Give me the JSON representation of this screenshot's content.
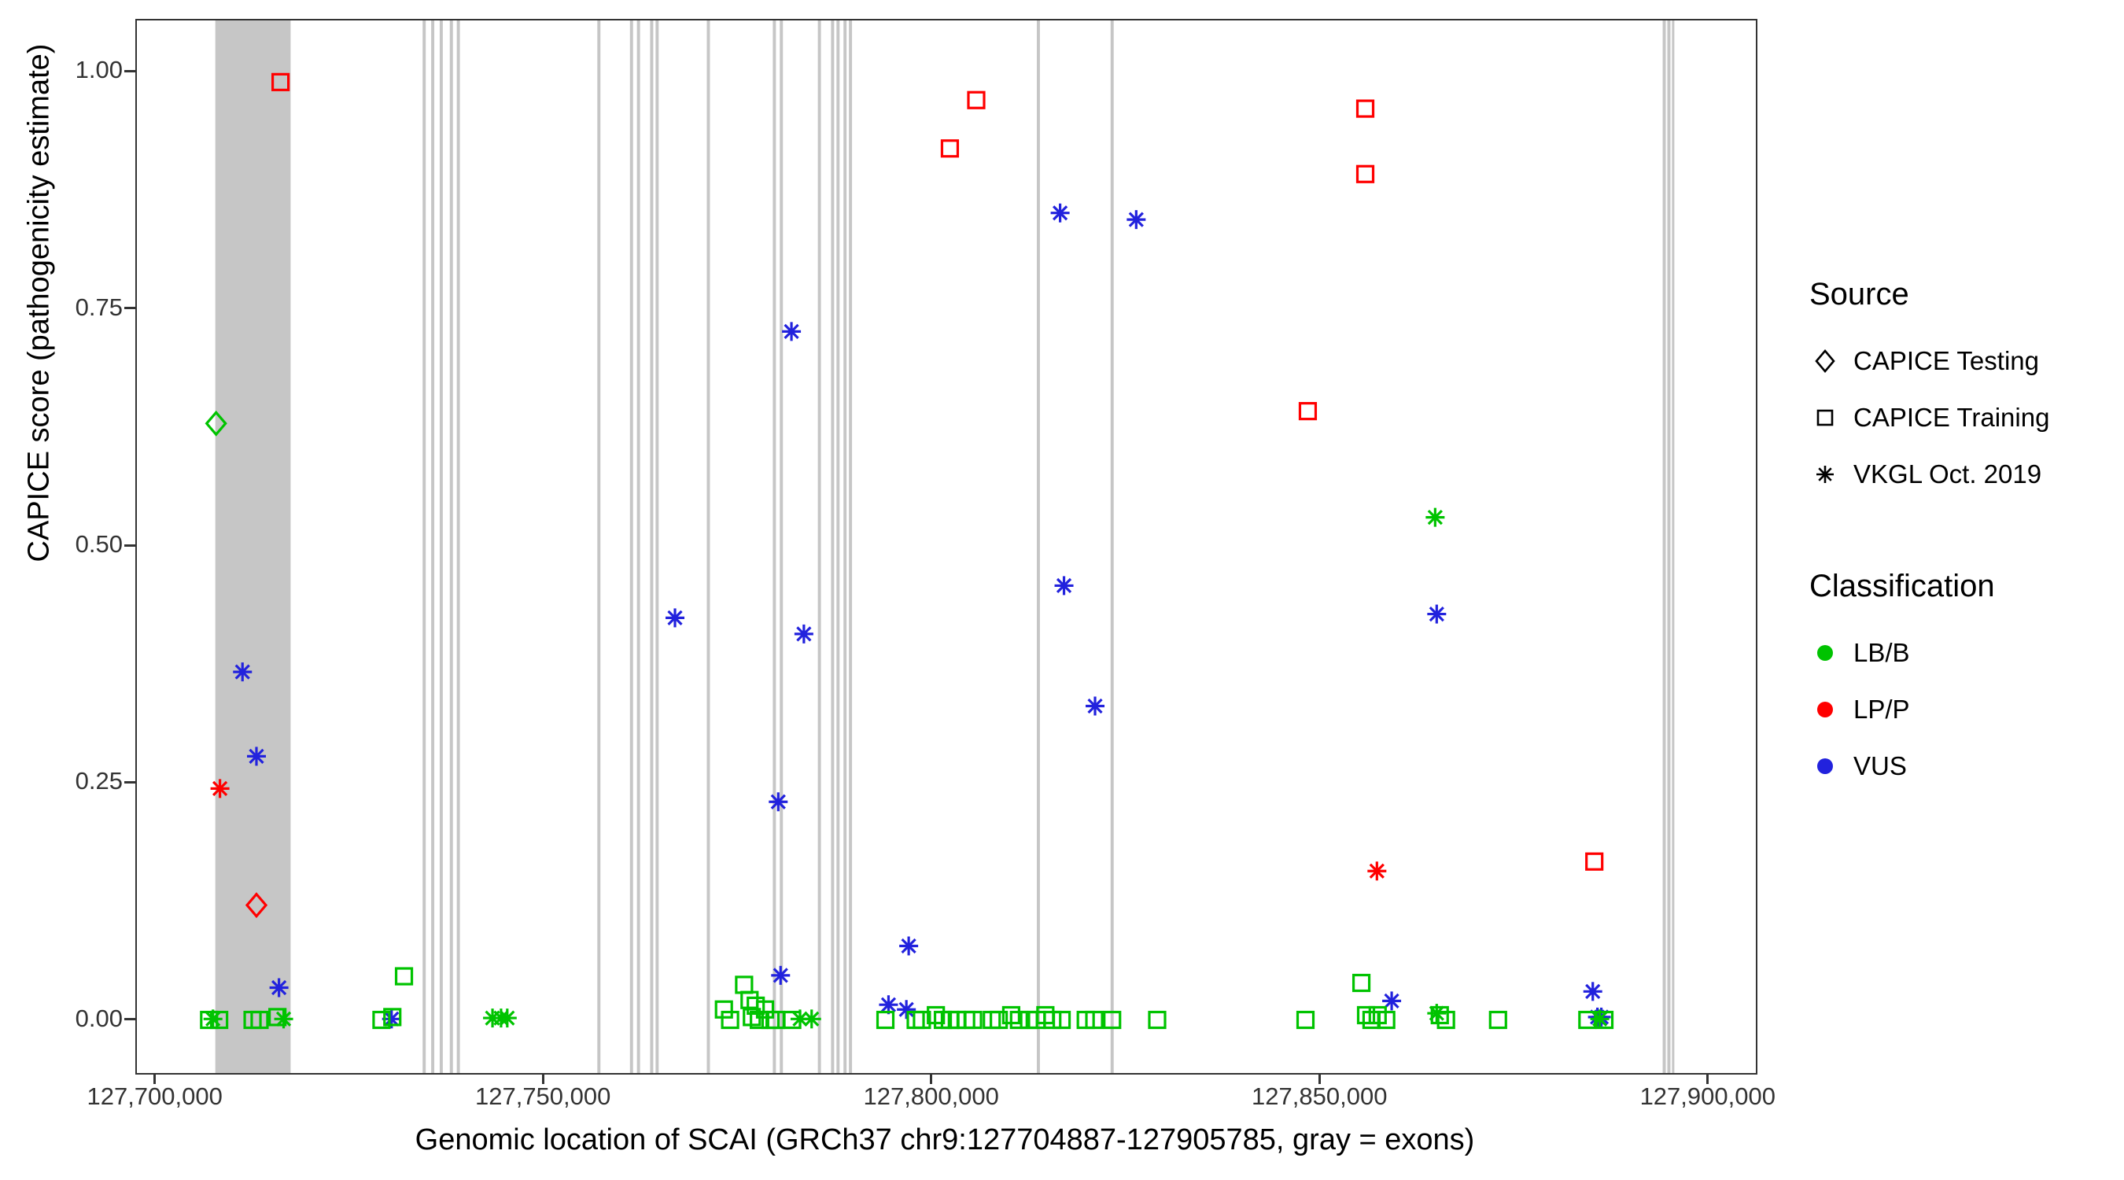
{
  "legend": {
    "source": {
      "title": "Source",
      "items": [
        {
          "label": "CAPICE Testing",
          "marker": "diamond"
        },
        {
          "label": "CAPICE Training",
          "marker": "square"
        },
        {
          "label": "VKGL Oct. 2019",
          "marker": "asterisk"
        }
      ]
    },
    "classification": {
      "title": "Classification",
      "items": [
        {
          "label": "LB/B",
          "color": "#00C300"
        },
        {
          "label": "LP/P",
          "color": "#FF0000"
        },
        {
          "label": "VUS",
          "color": "#2222DD"
        }
      ]
    }
  },
  "chart_data": {
    "type": "scatter",
    "title": "",
    "xlabel": "Genomic location of SCAI (GRCh37 chr9:127704887-127905785, gray = exons)",
    "ylabel": "CAPICE score (pathogenicity estimate)",
    "xlim": [
      127697500,
      127906000
    ],
    "ylim": [
      -0.055,
      1.055
    ],
    "grid": "none",
    "legend_position": "right",
    "exon_color": "#c6c6c6",
    "xticks": [
      {
        "value": 127700000,
        "label": "127,700,000"
      },
      {
        "value": 127750000,
        "label": "127,750,000"
      },
      {
        "value": 127800000,
        "label": "127,800,000"
      },
      {
        "value": 127850000,
        "label": "127,850,000"
      },
      {
        "value": 127900000,
        "label": "127,900,000"
      }
    ],
    "yticks": [
      {
        "value": 0.0,
        "label": "0.00"
      },
      {
        "value": 0.25,
        "label": "0.25"
      },
      {
        "value": 0.5,
        "label": "0.50"
      },
      {
        "value": 0.75,
        "label": "0.75"
      },
      {
        "value": 1.0,
        "label": "1.00"
      }
    ],
    "colors": {
      "LB/B": "#00C300",
      "LP/P": "#FF0000",
      "VUS": "#2222DD"
    },
    "marker_by_source": {
      "CAPICE Testing": "diamond",
      "CAPICE Training": "square",
      "VKGL Oct. 2019": "asterisk"
    },
    "exons": [
      {
        "start": 127707600,
        "end": 127717300
      },
      {
        "start": 127734300,
        "end": 127734700
      },
      {
        "start": 127735400,
        "end": 127735800
      },
      {
        "start": 127736500,
        "end": 127736900
      },
      {
        "start": 127737800,
        "end": 127738200
      },
      {
        "start": 127738700,
        "end": 127739100
      },
      {
        "start": 127756800,
        "end": 127757200
      },
      {
        "start": 127761000,
        "end": 127761400
      },
      {
        "start": 127761900,
        "end": 127762300
      },
      {
        "start": 127763600,
        "end": 127764000
      },
      {
        "start": 127764300,
        "end": 127764700
      },
      {
        "start": 127770900,
        "end": 127771300
      },
      {
        "start": 127779400,
        "end": 127779800
      },
      {
        "start": 127780300,
        "end": 127780700
      },
      {
        "start": 127785200,
        "end": 127785600
      },
      {
        "start": 127786900,
        "end": 127787300
      },
      {
        "start": 127787600,
        "end": 127788000
      },
      {
        "start": 127788500,
        "end": 127788900
      },
      {
        "start": 127789200,
        "end": 127789600
      },
      {
        "start": 127813400,
        "end": 127813800
      },
      {
        "start": 127822900,
        "end": 127823300
      },
      {
        "start": 127894000,
        "end": 127894400
      },
      {
        "start": 127894600,
        "end": 127895000
      },
      {
        "start": 127895200,
        "end": 127895500
      }
    ],
    "points": [
      {
        "x": 127707700,
        "y": 0.63,
        "source": "CAPICE Testing",
        "class": "LB/B"
      },
      {
        "x": 127712900,
        "y": 0.122,
        "source": "CAPICE Testing",
        "class": "LP/P"
      },
      {
        "x": 127716000,
        "y": 0.99,
        "source": "CAPICE Training",
        "class": "LP/P"
      },
      {
        "x": 127802200,
        "y": 0.92,
        "source": "CAPICE Training",
        "class": "LP/P"
      },
      {
        "x": 127805600,
        "y": 0.971,
        "source": "CAPICE Training",
        "class": "LP/P"
      },
      {
        "x": 127848300,
        "y": 0.643,
        "source": "CAPICE Training",
        "class": "LP/P"
      },
      {
        "x": 127855700,
        "y": 0.962,
        "source": "CAPICE Training",
        "class": "LP/P"
      },
      {
        "x": 127855700,
        "y": 0.893,
        "source": "CAPICE Training",
        "class": "LP/P"
      },
      {
        "x": 127885200,
        "y": 0.168,
        "source": "CAPICE Training",
        "class": "LP/P"
      },
      {
        "x": 127708200,
        "y": 0.245,
        "source": "VKGL Oct. 2019",
        "class": "LP/P"
      },
      {
        "x": 127857200,
        "y": 0.158,
        "source": "VKGL Oct. 2019",
        "class": "LP/P"
      },
      {
        "x": 127711100,
        "y": 0.368,
        "source": "VKGL Oct. 2019",
        "class": "VUS"
      },
      {
        "x": 127712900,
        "y": 0.279,
        "source": "VKGL Oct. 2019",
        "class": "VUS"
      },
      {
        "x": 127715800,
        "y": 0.035,
        "source": "VKGL Oct. 2019",
        "class": "VUS"
      },
      {
        "x": 127730300,
        "y": 0.002,
        "source": "VKGL Oct. 2019",
        "class": "VUS"
      },
      {
        "x": 127766800,
        "y": 0.425,
        "source": "VKGL Oct. 2019",
        "class": "VUS"
      },
      {
        "x": 127780100,
        "y": 0.231,
        "source": "VKGL Oct. 2019",
        "class": "VUS"
      },
      {
        "x": 127780400,
        "y": 0.048,
        "source": "VKGL Oct. 2019",
        "class": "VUS"
      },
      {
        "x": 127781800,
        "y": 0.727,
        "source": "VKGL Oct. 2019",
        "class": "VUS"
      },
      {
        "x": 127783400,
        "y": 0.408,
        "source": "VKGL Oct. 2019",
        "class": "VUS"
      },
      {
        "x": 127794300,
        "y": 0.017,
        "source": "VKGL Oct. 2019",
        "class": "VUS"
      },
      {
        "x": 127796600,
        "y": 0.012,
        "source": "VKGL Oct. 2019",
        "class": "VUS"
      },
      {
        "x": 127796900,
        "y": 0.079,
        "source": "VKGL Oct. 2019",
        "class": "VUS"
      },
      {
        "x": 127816400,
        "y": 0.852,
        "source": "VKGL Oct. 2019",
        "class": "VUS"
      },
      {
        "x": 127816900,
        "y": 0.459,
        "source": "VKGL Oct. 2019",
        "class": "VUS"
      },
      {
        "x": 127820900,
        "y": 0.332,
        "source": "VKGL Oct. 2019",
        "class": "VUS"
      },
      {
        "x": 127826200,
        "y": 0.845,
        "source": "VKGL Oct. 2019",
        "class": "VUS"
      },
      {
        "x": 127859100,
        "y": 0.021,
        "source": "VKGL Oct. 2019",
        "class": "VUS"
      },
      {
        "x": 127864900,
        "y": 0.429,
        "source": "VKGL Oct. 2019",
        "class": "VUS"
      },
      {
        "x": 127885000,
        "y": 0.031,
        "source": "VKGL Oct. 2019",
        "class": "VUS"
      },
      {
        "x": 127885600,
        "y": 0.004,
        "source": "VKGL Oct. 2019",
        "class": "VUS"
      },
      {
        "x": 127886100,
        "y": 0.004,
        "source": "VKGL Oct. 2019",
        "class": "VUS"
      },
      {
        "x": 127707300,
        "y": 0.002,
        "source": "VKGL Oct. 2019",
        "class": "LB/B"
      },
      {
        "x": 127716400,
        "y": 0.002,
        "source": "VKGL Oct. 2019",
        "class": "LB/B"
      },
      {
        "x": 127743300,
        "y": 0.003,
        "source": "VKGL Oct. 2019",
        "class": "LB/B"
      },
      {
        "x": 127744400,
        "y": 0.003,
        "source": "VKGL Oct. 2019",
        "class": "LB/B"
      },
      {
        "x": 127745200,
        "y": 0.003,
        "source": "VKGL Oct. 2019",
        "class": "LB/B"
      },
      {
        "x": 127782900,
        "y": 0.002,
        "source": "VKGL Oct. 2019",
        "class": "LB/B"
      },
      {
        "x": 127784400,
        "y": 0.002,
        "source": "VKGL Oct. 2019",
        "class": "LB/B"
      },
      {
        "x": 127864700,
        "y": 0.531,
        "source": "VKGL Oct. 2019",
        "class": "LB/B"
      },
      {
        "x": 127864900,
        "y": 0.008,
        "source": "VKGL Oct. 2019",
        "class": "LB/B"
      },
      {
        "x": 127885900,
        "y": 0.002,
        "source": "VKGL Oct. 2019",
        "class": "LB/B"
      },
      {
        "x": 127706800,
        "y": 0.001,
        "source": "CAPICE Training",
        "class": "LB/B"
      },
      {
        "x": 127708100,
        "y": 0.001,
        "source": "CAPICE Training",
        "class": "LB/B"
      },
      {
        "x": 127712400,
        "y": 0.001,
        "source": "CAPICE Training",
        "class": "LB/B"
      },
      {
        "x": 127713300,
        "y": 0.001,
        "source": "CAPICE Training",
        "class": "LB/B"
      },
      {
        "x": 127715600,
        "y": 0.004,
        "source": "CAPICE Training",
        "class": "LB/B"
      },
      {
        "x": 127729000,
        "y": 0.001,
        "source": "CAPICE Training",
        "class": "LB/B"
      },
      {
        "x": 127730400,
        "y": 0.004,
        "source": "CAPICE Training",
        "class": "LB/B"
      },
      {
        "x": 127731900,
        "y": 0.047,
        "source": "CAPICE Training",
        "class": "LB/B"
      },
      {
        "x": 127773100,
        "y": 0.012,
        "source": "CAPICE Training",
        "class": "LB/B"
      },
      {
        "x": 127773900,
        "y": 0.001,
        "source": "CAPICE Training",
        "class": "LB/B"
      },
      {
        "x": 127775700,
        "y": 0.038,
        "source": "CAPICE Training",
        "class": "LB/B"
      },
      {
        "x": 127776400,
        "y": 0.022,
        "source": "CAPICE Training",
        "class": "LB/B"
      },
      {
        "x": 127776700,
        "y": 0.004,
        "source": "CAPICE Training",
        "class": "LB/B"
      },
      {
        "x": 127777200,
        "y": 0.016,
        "source": "CAPICE Training",
        "class": "LB/B"
      },
      {
        "x": 127777600,
        "y": 0.001,
        "source": "CAPICE Training",
        "class": "LB/B"
      },
      {
        "x": 127778400,
        "y": 0.012,
        "source": "CAPICE Training",
        "class": "LB/B"
      },
      {
        "x": 127779100,
        "y": 0.001,
        "source": "CAPICE Training",
        "class": "LB/B"
      },
      {
        "x": 127779800,
        "y": 0.001,
        "source": "CAPICE Training",
        "class": "LB/B"
      },
      {
        "x": 127781900,
        "y": 0.001,
        "source": "CAPICE Training",
        "class": "LB/B"
      },
      {
        "x": 127793900,
        "y": 0.001,
        "source": "CAPICE Training",
        "class": "LB/B"
      },
      {
        "x": 127797800,
        "y": 0.001,
        "source": "CAPICE Training",
        "class": "LB/B"
      },
      {
        "x": 127798600,
        "y": 0.001,
        "source": "CAPICE Training",
        "class": "LB/B"
      },
      {
        "x": 127800400,
        "y": 0.006,
        "source": "CAPICE Training",
        "class": "LB/B"
      },
      {
        "x": 127801300,
        "y": 0.001,
        "source": "CAPICE Training",
        "class": "LB/B"
      },
      {
        "x": 127802200,
        "y": 0.001,
        "source": "CAPICE Training",
        "class": "LB/B"
      },
      {
        "x": 127803100,
        "y": 0.001,
        "source": "CAPICE Training",
        "class": "LB/B"
      },
      {
        "x": 127804300,
        "y": 0.001,
        "source": "CAPICE Training",
        "class": "LB/B"
      },
      {
        "x": 127805200,
        "y": 0.001,
        "source": "CAPICE Training",
        "class": "LB/B"
      },
      {
        "x": 127807600,
        "y": 0.001,
        "source": "CAPICE Training",
        "class": "LB/B"
      },
      {
        "x": 127808500,
        "y": 0.001,
        "source": "CAPICE Training",
        "class": "LB/B"
      },
      {
        "x": 127810100,
        "y": 0.006,
        "source": "CAPICE Training",
        "class": "LB/B"
      },
      {
        "x": 127811100,
        "y": 0.001,
        "source": "CAPICE Training",
        "class": "LB/B"
      },
      {
        "x": 127812400,
        "y": 0.001,
        "source": "CAPICE Training",
        "class": "LB/B"
      },
      {
        "x": 127813400,
        "y": 0.001,
        "source": "CAPICE Training",
        "class": "LB/B"
      },
      {
        "x": 127814500,
        "y": 0.006,
        "source": "CAPICE Training",
        "class": "LB/B"
      },
      {
        "x": 127815400,
        "y": 0.001,
        "source": "CAPICE Training",
        "class": "LB/B"
      },
      {
        "x": 127816600,
        "y": 0.001,
        "source": "CAPICE Training",
        "class": "LB/B"
      },
      {
        "x": 127819700,
        "y": 0.001,
        "source": "CAPICE Training",
        "class": "LB/B"
      },
      {
        "x": 127820800,
        "y": 0.001,
        "source": "CAPICE Training",
        "class": "LB/B"
      },
      {
        "x": 127823100,
        "y": 0.001,
        "source": "CAPICE Training",
        "class": "LB/B"
      },
      {
        "x": 127828900,
        "y": 0.001,
        "source": "CAPICE Training",
        "class": "LB/B"
      },
      {
        "x": 127848000,
        "y": 0.001,
        "source": "CAPICE Training",
        "class": "LB/B"
      },
      {
        "x": 127855200,
        "y": 0.04,
        "source": "CAPICE Training",
        "class": "LB/B"
      },
      {
        "x": 127855800,
        "y": 0.006,
        "source": "CAPICE Training",
        "class": "LB/B"
      },
      {
        "x": 127856500,
        "y": 0.001,
        "source": "CAPICE Training",
        "class": "LB/B"
      },
      {
        "x": 127857300,
        "y": 0.006,
        "source": "CAPICE Training",
        "class": "LB/B"
      },
      {
        "x": 127858400,
        "y": 0.001,
        "source": "CAPICE Training",
        "class": "LB/B"
      },
      {
        "x": 127865300,
        "y": 0.006,
        "source": "CAPICE Training",
        "class": "LB/B"
      },
      {
        "x": 127866100,
        "y": 0.001,
        "source": "CAPICE Training",
        "class": "LB/B"
      },
      {
        "x": 127872800,
        "y": 0.001,
        "source": "CAPICE Training",
        "class": "LB/B"
      },
      {
        "x": 127884300,
        "y": 0.001,
        "source": "CAPICE Training",
        "class": "LB/B"
      },
      {
        "x": 127886500,
        "y": 0.001,
        "source": "CAPICE Training",
        "class": "LB/B"
      }
    ]
  }
}
